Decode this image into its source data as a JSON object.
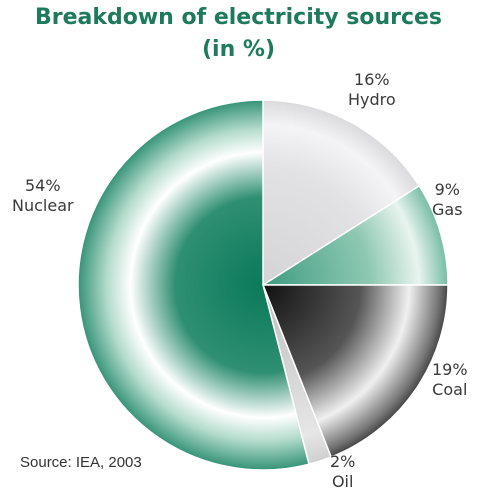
{
  "colors": {
    "title": "#1e7a5c",
    "nuclear": "#0a7a5a",
    "hydro": "#d4d4d6",
    "gas": "#3f9c80",
    "coal": "#111111",
    "oil": "#c8c8c8",
    "edge": "#ffffff"
  },
  "chart_data": {
    "type": "pie",
    "title_line1": "Breakdown of electricity sources",
    "title_line2": "(in %)",
    "source": "Source: IEA, 2003",
    "start_angle_deg": 270,
    "direction": "clockwise",
    "slices": [
      {
        "label": "Hydro",
        "value": 16,
        "value_text": "16%"
      },
      {
        "label": "Gas",
        "value": 9,
        "value_text": "9%"
      },
      {
        "label": "Coal",
        "value": 19,
        "value_text": "19%"
      },
      {
        "label": "Oil",
        "value": 2,
        "value_text": "2%"
      },
      {
        "label": "Nuclear",
        "value": 54,
        "value_text": "54%"
      }
    ]
  }
}
